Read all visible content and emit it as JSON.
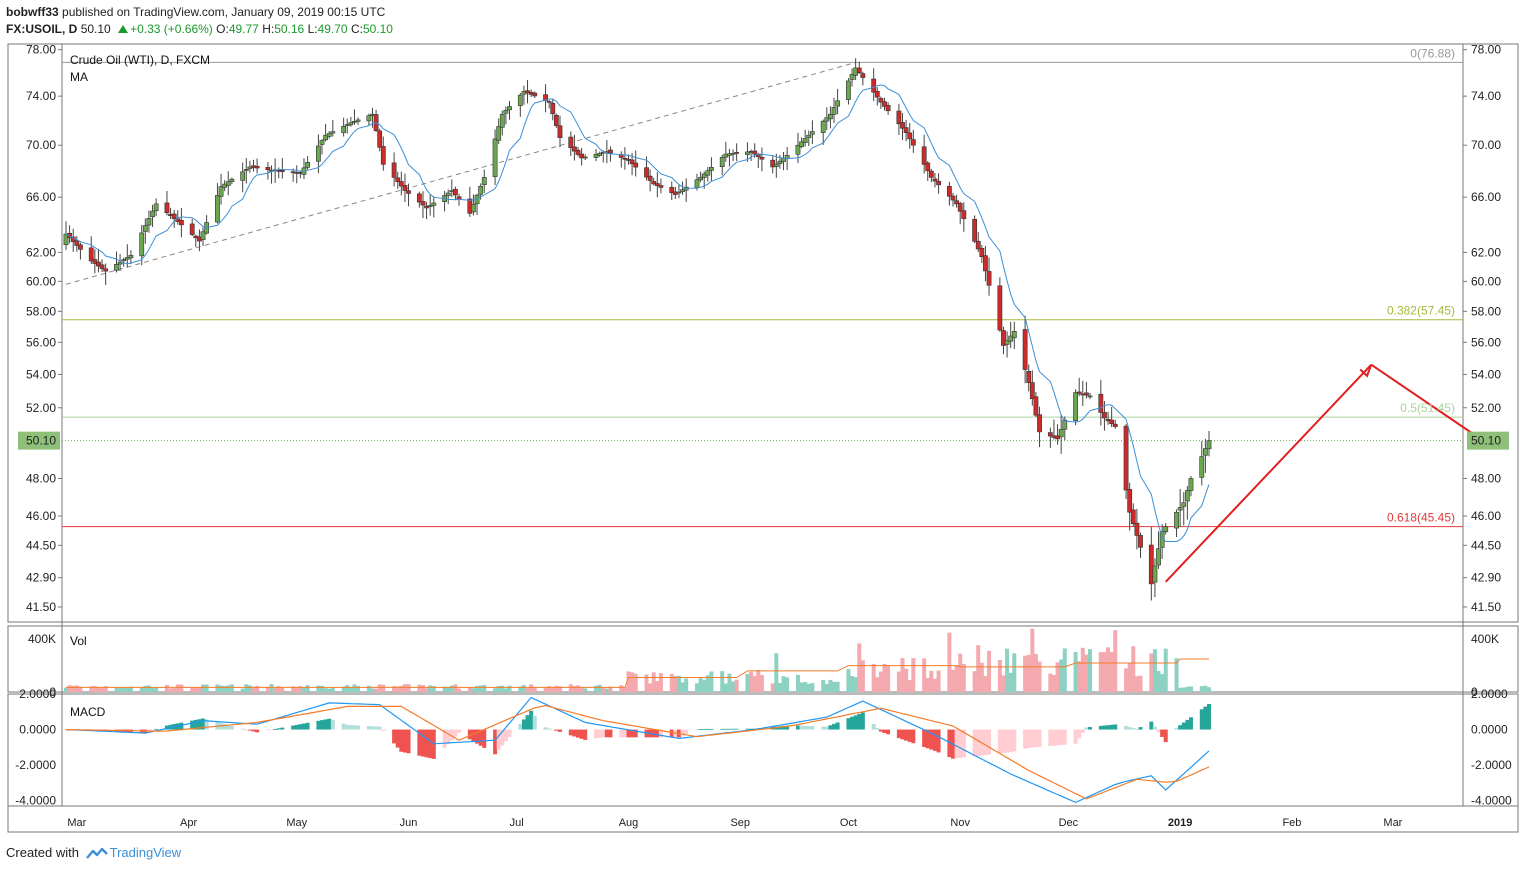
{
  "header": {
    "author": "bobwff33",
    "published_text": "published on TradingView.com, January 09, 2019 00:15 UTC",
    "symbol": "FX:USOIL, D",
    "last": "50.10",
    "change": "+0.33 (+0.66%)",
    "ohlc": {
      "o_label": "O:",
      "o": "49.77",
      "h_label": "H:",
      "h": "50.16",
      "l_label": "L:",
      "l": "49.70",
      "c_label": "C:",
      "c": "50.10"
    }
  },
  "footer": {
    "created_with": "Created with",
    "brand": "TradingView"
  },
  "colors": {
    "up": "#6aa84f",
    "down": "#cc2b2b",
    "ma": "#3d8fd6",
    "macd": "#2196f3",
    "signal": "#f57c29",
    "fib382": "#a8b83a",
    "fib50": "#a9d39e",
    "fib618": "#e23a3a",
    "arrow": "#e31e1e",
    "price_tag": "#8fc07a"
  },
  "chart_data": [
    {
      "type": "candlestick",
      "title": "Crude Oil (WTI), D, FXCM",
      "indicator_label": "MA",
      "x_ticks": [
        "Mar",
        "Apr",
        "May",
        "Jun",
        "Jul",
        "Aug",
        "Sep",
        "Oct",
        "Nov",
        "Dec",
        "2019",
        "Feb",
        "Mar"
      ],
      "y_ticks": [
        "78.00",
        "74.00",
        "70.00",
        "66.00",
        "62.00",
        "60.00",
        "58.00",
        "56.00",
        "54.00",
        "52.00",
        "50.10",
        "48.00",
        "46.00",
        "44.50",
        "42.90",
        "41.50"
      ],
      "ylim": [
        40.8,
        78.5
      ],
      "y_scale": "log",
      "last_price": "50.10",
      "close_path": [
        [
          "2018-02-26",
          63.3
        ],
        [
          "2018-03-05",
          61.4
        ],
        [
          "2018-03-09",
          60.7
        ],
        [
          "2018-03-16",
          61.8
        ],
        [
          "2018-03-23",
          65.5
        ],
        [
          "2018-03-29",
          64.2
        ],
        [
          "2018-04-04",
          62.8
        ],
        [
          "2018-04-10",
          66.8
        ],
        [
          "2018-04-18",
          68.3
        ],
        [
          "2018-04-25",
          68.0
        ],
        [
          "2018-05-02",
          67.8
        ],
        [
          "2018-05-09",
          70.8
        ],
        [
          "2018-05-16",
          71.8
        ],
        [
          "2018-05-22",
          72.5
        ],
        [
          "2018-05-25",
          68.5
        ],
        [
          "2018-05-31",
          66.5
        ],
        [
          "2018-06-06",
          65.2
        ],
        [
          "2018-06-13",
          66.5
        ],
        [
          "2018-06-18",
          64.8
        ],
        [
          "2018-06-22",
          67.5
        ],
        [
          "2018-06-27",
          72.5
        ],
        [
          "2018-07-03",
          74.4
        ],
        [
          "2018-07-10",
          73.5
        ],
        [
          "2018-07-13",
          70.6
        ],
        [
          "2018-07-19",
          69.0
        ],
        [
          "2018-07-26",
          69.5
        ],
        [
          "2018-08-01",
          68.8
        ],
        [
          "2018-08-08",
          67.0
        ],
        [
          "2018-08-14",
          66.2
        ],
        [
          "2018-08-21",
          67.5
        ],
        [
          "2018-08-28",
          69.3
        ],
        [
          "2018-09-04",
          69.5
        ],
        [
          "2018-09-10",
          68.3
        ],
        [
          "2018-09-14",
          69.2
        ],
        [
          "2018-09-20",
          70.8
        ],
        [
          "2018-09-26",
          72.5
        ],
        [
          "2018-10-03",
          76.4
        ],
        [
          "2018-10-10",
          73.5
        ],
        [
          "2018-10-17",
          71.0
        ],
        [
          "2018-10-24",
          67.5
        ],
        [
          "2018-10-31",
          65.5
        ],
        [
          "2018-11-07",
          61.7
        ],
        [
          "2018-11-13",
          55.8
        ],
        [
          "2018-11-16",
          56.7
        ],
        [
          "2018-11-20",
          53.5
        ],
        [
          "2018-11-23",
          50.6
        ],
        [
          "2018-11-28",
          50.2
        ],
        [
          "2018-12-03",
          52.9
        ],
        [
          "2018-12-07",
          52.7
        ],
        [
          "2018-12-11",
          51.4
        ],
        [
          "2018-12-14",
          50.9
        ],
        [
          "2018-12-18",
          46.2
        ],
        [
          "2018-12-24",
          42.6
        ],
        [
          "2018-12-27",
          45.2
        ],
        [
          "2019-01-02",
          46.7
        ],
        [
          "2019-01-04",
          48.0
        ],
        [
          "2019-01-07",
          49.2
        ],
        [
          "2019-01-09",
          50.1
        ]
      ],
      "overlays": {
        "fib_levels": [
          {
            "label": "0(76.88)",
            "price": 76.88
          },
          {
            "label": "0.382(57.45)",
            "price": 57.45
          },
          {
            "label": "0.5(51.45)",
            "price": 51.45
          },
          {
            "label": "0.618(45.45)",
            "price": 45.45
          }
        ],
        "trend_line": [
          [
            "2018-02-26",
            59.8
          ],
          [
            "2018-10-03",
            76.88
          ]
        ],
        "forecast_arrows": [
          [
            [
              "2018-12-28",
              42.7
            ],
            [
              "2019-02-23",
              54.6
            ]
          ],
          [
            [
              "2019-02-23",
              54.6
            ],
            [
              "2019-03-26",
              50.1
            ]
          ]
        ]
      }
    },
    {
      "type": "bar",
      "title": "Vol",
      "y_ticks": [
        "400K",
        "0"
      ],
      "ylim": [
        0,
        500000
      ]
    },
    {
      "type": "line",
      "title": "MACD",
      "y_ticks": [
        "2.0000",
        "0.0000",
        "-2.0000",
        "-4.0000"
      ],
      "ylim": [
        -4.3,
        2.0
      ],
      "series": [
        {
          "name": "",
          "values_path": [
            [
              "2018-02-26",
              0.0
            ],
            [
              "2018-03-20",
              -0.2
            ],
            [
              "2018-04-05",
              0.5
            ],
            [
              "2018-04-20",
              0.3
            ],
            [
              "2018-05-10",
              1.5
            ],
            [
              "2018-05-24",
              1.4
            ],
            [
              "2018-06-08",
              -0.8
            ],
            [
              "2018-06-25",
              -0.6
            ],
            [
              "2018-07-05",
              1.8
            ],
            [
              "2018-07-20",
              0.4
            ],
            [
              "2018-08-15",
              -0.5
            ],
            [
              "2018-09-05",
              0.0
            ],
            [
              "2018-09-25",
              0.7
            ],
            [
              "2018-10-05",
              1.6
            ],
            [
              "2018-10-25",
              -0.3
            ],
            [
              "2018-11-15",
              -2.5
            ],
            [
              "2018-12-03",
              -4.1
            ],
            [
              "2018-12-15",
              -3.0
            ],
            [
              "2018-12-24",
              -2.6
            ],
            [
              "2018-12-28",
              -3.4
            ],
            [
              "2019-01-09",
              -1.2
            ]
          ]
        },
        {
          "name": "",
          "values_path": [
            [
              "2018-02-26",
              0.0
            ],
            [
              "2018-03-25",
              -0.1
            ],
            [
              "2018-04-20",
              0.4
            ],
            [
              "2018-05-15",
              1.3
            ],
            [
              "2018-05-30",
              1.3
            ],
            [
              "2018-06-15",
              -0.6
            ],
            [
              "2018-07-08",
              1.4
            ],
            [
              "2018-07-25",
              0.5
            ],
            [
              "2018-08-20",
              -0.4
            ],
            [
              "2018-09-15",
              0.2
            ],
            [
              "2018-10-10",
              1.2
            ],
            [
              "2018-10-30",
              0.2
            ],
            [
              "2018-11-20",
              -2.3
            ],
            [
              "2018-12-06",
              -3.9
            ],
            [
              "2018-12-20",
              -2.8
            ],
            [
              "2018-12-30",
              -3.0
            ],
            [
              "2019-01-09",
              -2.1
            ]
          ]
        }
      ]
    }
  ]
}
